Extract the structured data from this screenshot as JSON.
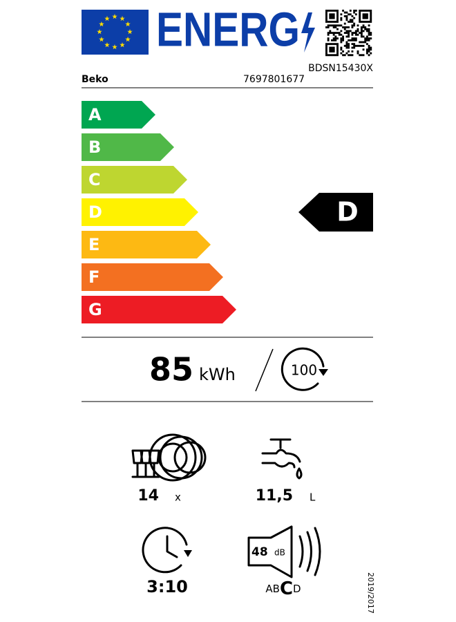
{
  "header": {
    "logo_text": "ENERG",
    "supplier": "Beko",
    "model": "BDSN15430X",
    "id": "7697801677"
  },
  "scale": {
    "classes": [
      "A",
      "B",
      "C",
      "D",
      "E",
      "F",
      "G"
    ],
    "colors": [
      "#00a651",
      "#50b848",
      "#bed630",
      "#fff200",
      "#fdb913",
      "#f37021",
      "#ed1c24"
    ],
    "rating": "D"
  },
  "energy": {
    "value": 85,
    "unit": "kWh",
    "cycles": 100
  },
  "capacity": {
    "value": 14,
    "unit": "x"
  },
  "water": {
    "value": "11,5",
    "unit": "L"
  },
  "duration": {
    "value": "3:10"
  },
  "noise": {
    "value": 48,
    "unit": "dB",
    "classes": [
      "A",
      "B",
      "C",
      "D"
    ],
    "class": "C"
  },
  "regulation": "2019/2017"
}
